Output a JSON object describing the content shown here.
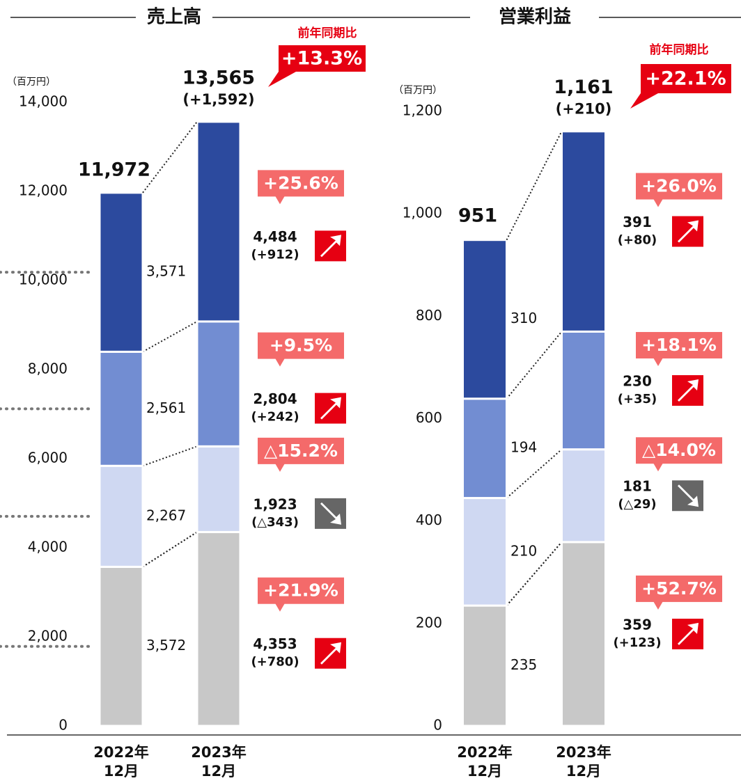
{
  "chart_data": [
    {
      "type": "bar",
      "stacked": true,
      "title": "売上高",
      "unit": "（百万円）",
      "categories": [
        "2022年\n12月",
        "2023年\n12月"
      ],
      "series": [
        {
          "color": "#c8c8c8",
          "values": [
            3572,
            4353
          ],
          "value_labels": [
            "3,572",
            "4,353"
          ],
          "change": "(+780)",
          "growth": "+21.9%"
        },
        {
          "color": "#cfd8f2",
          "values": [
            2267,
            1923
          ],
          "value_labels": [
            "2,267",
            "1,923"
          ],
          "change": "(△343)",
          "growth": "△15.2%"
        },
        {
          "color": "#728dd2",
          "values": [
            2561,
            2804
          ],
          "value_labels": [
            "2,561",
            "2,804"
          ],
          "change": "(+242)",
          "growth": "+9.5%"
        },
        {
          "color": "#2c4a9e",
          "values": [
            3571,
            4484
          ],
          "value_labels": [
            "3,571",
            "4,484"
          ],
          "change": "(+912)",
          "growth": "+25.6%"
        }
      ],
      "totals": [
        11972,
        13565
      ],
      "total_labels": [
        "11,972",
        "13,565"
      ],
      "total_change": "(+1,592)",
      "yoy_caption": "前年同期比",
      "yoy_label": "+13.3%",
      "ylim": [
        0,
        14000
      ],
      "yticks": [
        0,
        {
          "value": 2000,
          "label": "2,000"
        },
        {
          "value": 4000,
          "label": "4,000"
        },
        {
          "value": 6000,
          "label": "6,000"
        },
        {
          "value": 8000,
          "label": "8,000"
        },
        {
          "value": 10000,
          "label": "10,000"
        },
        {
          "value": 12000,
          "label": "12,000"
        },
        {
          "value": 14000,
          "label": "14,000"
        }
      ]
    },
    {
      "type": "bar",
      "stacked": true,
      "title": "営業利益",
      "unit": "（百万円）",
      "categories": [
        "2022年\n12月",
        "2023年\n12月"
      ],
      "series": [
        {
          "color": "#c8c8c8",
          "values": [
            235,
            359
          ],
          "value_labels": [
            null,
            null
          ],
          "change": "(+123)",
          "growth": "+52.7%"
        },
        {
          "color": "#cfd8f2",
          "values": [
            210,
            181
          ],
          "value_labels": [
            null,
            null
          ],
          "change": "(△29)",
          "growth": "△14.0%"
        },
        {
          "color": "#728dd2",
          "values": [
            194,
            230
          ],
          "value_labels": [
            null,
            null
          ],
          "change": "(+35)",
          "growth": "+18.1%"
        },
        {
          "color": "#2c4a9e",
          "values": [
            310,
            391
          ],
          "value_labels": [
            null,
            null
          ],
          "change": "(+80)",
          "growth": "+26.0%"
        }
      ],
      "totals": [
        951,
        1161
      ],
      "total_labels": [
        "951",
        "1,161"
      ],
      "total_change": "(+210)",
      "yoy_caption": "前年同期比",
      "yoy_label": "+22.1%",
      "ylim": [
        0,
        1200
      ],
      "yticks": [
        0,
        200,
        400,
        600,
        800,
        {
          "value": 1000,
          "label": "1,000"
        },
        {
          "value": 1200,
          "label": "1,200"
        }
      ]
    }
  ]
}
